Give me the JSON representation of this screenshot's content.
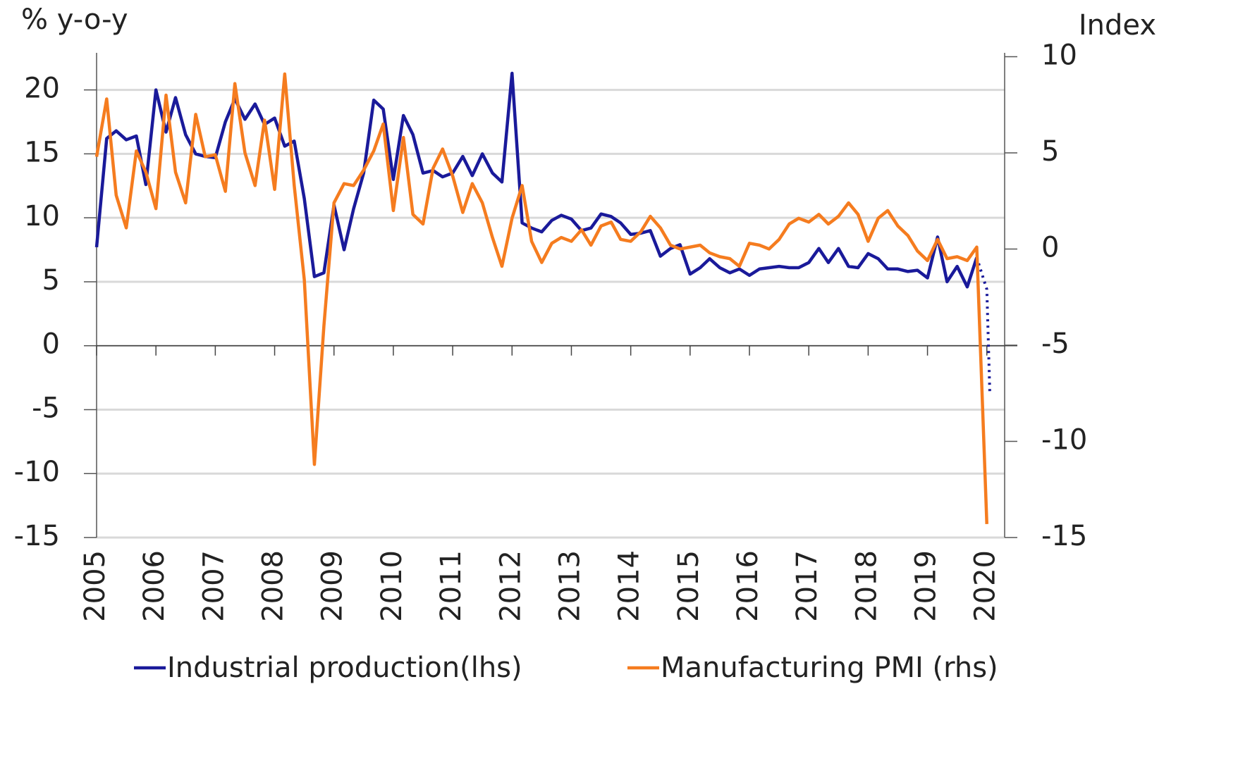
{
  "chart_data": {
    "type": "line",
    "y_label": "% y-o-y",
    "y2_label": "Index",
    "x": [
      2005.0,
      2005.17,
      2005.33,
      2005.5,
      2005.67,
      2005.83,
      2006.0,
      2006.17,
      2006.33,
      2006.5,
      2006.67,
      2006.83,
      2007.0,
      2007.17,
      2007.33,
      2007.5,
      2007.67,
      2007.83,
      2008.0,
      2008.17,
      2008.33,
      2008.5,
      2008.67,
      2008.83,
      2009.0,
      2009.17,
      2009.33,
      2009.5,
      2009.67,
      2009.83,
      2010.0,
      2010.17,
      2010.33,
      2010.5,
      2010.67,
      2010.83,
      2011.0,
      2011.17,
      2011.33,
      2011.5,
      2011.67,
      2011.83,
      2012.0,
      2012.17,
      2012.33,
      2012.5,
      2012.67,
      2012.83,
      2013.0,
      2013.17,
      2013.33,
      2013.5,
      2013.67,
      2013.83,
      2014.0,
      2014.17,
      2014.33,
      2014.5,
      2014.67,
      2014.83,
      2015.0,
      2015.17,
      2015.33,
      2015.5,
      2015.67,
      2015.83,
      2016.0,
      2016.17,
      2016.33,
      2016.5,
      2016.67,
      2016.83,
      2017.0,
      2017.17,
      2017.33,
      2017.5,
      2017.67,
      2017.83,
      2018.0,
      2018.17,
      2018.33,
      2018.5,
      2018.67,
      2018.83,
      2019.0,
      2019.17,
      2019.33,
      2019.5,
      2019.67,
      2019.83,
      2020.0,
      2020.05
    ],
    "series": [
      {
        "name": "Industrial production(lhs)",
        "color": "#1a1a9a",
        "axis": "y",
        "dotted_from_x": 2019.83,
        "values": [
          7.7,
          16.2,
          16.8,
          16.1,
          16.4,
          12.6,
          20.0,
          16.7,
          19.4,
          16.5,
          15.0,
          14.8,
          14.7,
          17.5,
          19.3,
          17.7,
          18.9,
          17.3,
          17.8,
          15.6,
          16.0,
          11.5,
          5.4,
          5.7,
          11.0,
          7.5,
          10.7,
          13.5,
          19.2,
          18.5,
          13.0,
          18.0,
          16.5,
          13.5,
          13.7,
          13.2,
          13.5,
          14.8,
          13.3,
          15.0,
          13.5,
          12.8,
          21.3,
          9.6,
          9.2,
          8.9,
          9.8,
          10.2,
          9.9,
          9.0,
          9.2,
          10.3,
          10.1,
          9.6,
          8.7,
          8.8,
          9.0,
          7.0,
          7.6,
          7.9,
          5.6,
          6.1,
          6.8,
          6.1,
          5.7,
          6.0,
          5.5,
          6.0,
          6.1,
          6.2,
          6.1,
          6.1,
          6.5,
          7.6,
          6.5,
          7.6,
          6.2,
          6.1,
          7.2,
          6.8,
          6.0,
          6.0,
          5.8,
          5.9,
          5.3,
          8.5,
          5.0,
          6.2,
          4.6,
          6.9,
          4.4,
          -3.7
        ]
      },
      {
        "name": "Manufacturing PMI (rhs)",
        "color": "#f57c1f",
        "axis": "y2",
        "values": [
          4.8,
          7.8,
          2.8,
          1.1,
          5.1,
          4.0,
          2.1,
          8.0,
          4.0,
          2.4,
          7.0,
          4.8,
          4.9,
          3.0,
          8.6,
          5.0,
          3.3,
          6.7,
          3.1,
          9.1,
          3.3,
          -1.6,
          -11.2,
          -4.0,
          2.4,
          3.4,
          3.3,
          4.1,
          5.1,
          6.5,
          2.0,
          5.8,
          1.8,
          1.3,
          4.2,
          5.2,
          3.8,
          1.9,
          3.4,
          2.4,
          0.6,
          -0.9,
          1.6,
          3.3,
          0.4,
          -0.7,
          0.3,
          0.6,
          0.4,
          1.0,
          0.2,
          1.2,
          1.4,
          0.5,
          0.4,
          0.9,
          1.7,
          1.1,
          0.2,
          0.0,
          0.1,
          0.2,
          -0.2,
          -0.4,
          -0.5,
          -0.9,
          0.3,
          0.2,
          0.0,
          0.5,
          1.3,
          1.6,
          1.4,
          1.8,
          1.3,
          1.7,
          2.4,
          1.8,
          0.4,
          1.6,
          2.0,
          1.2,
          0.7,
          -0.1,
          -0.6,
          0.5,
          -0.5,
          -0.4,
          -0.6,
          0.1,
          -14.3,
          null
        ]
      }
    ],
    "xlim": [
      2005,
      2020.3
    ],
    "xticks": [
      2005,
      2006,
      2007,
      2008,
      2009,
      2010,
      2011,
      2012,
      2013,
      2014,
      2015,
      2016,
      2017,
      2018,
      2019,
      2020
    ],
    "ylim": [
      -15,
      22.9
    ],
    "yticks": [
      -15,
      -10,
      -5,
      0,
      5,
      10,
      15,
      20
    ],
    "y2lim": [
      -15,
      10.2
    ],
    "y2ticks": [
      -15,
      -10,
      -5,
      0,
      5,
      10
    ],
    "grid": true,
    "legend": "bottom"
  }
}
